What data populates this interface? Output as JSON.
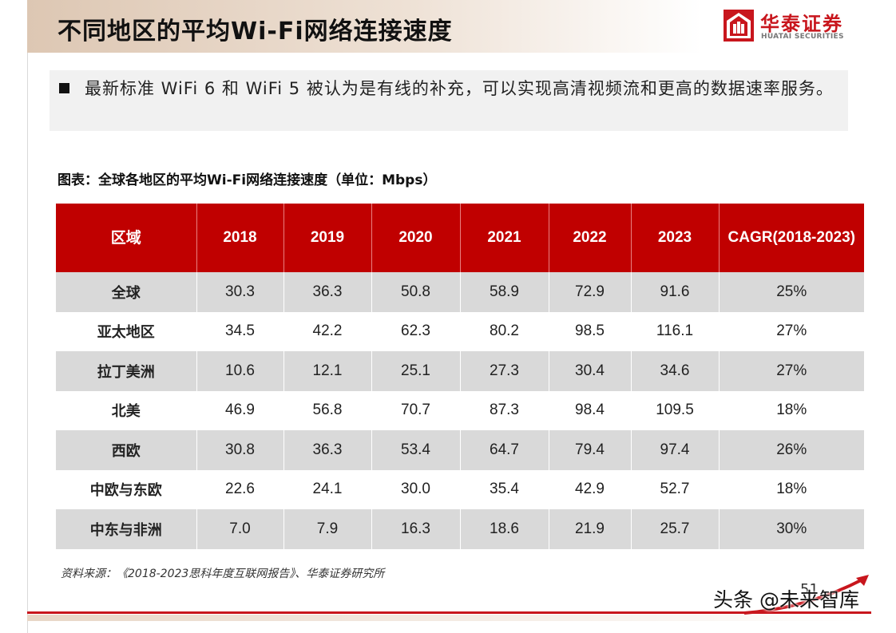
{
  "header": {
    "title": "不同地区的平均Wi-Fi网络连接速度",
    "logo_cn": "华泰证券",
    "logo_en": "HUATAI SECURITIES",
    "brand_color": "#c8161d"
  },
  "bullet": {
    "text": "最新标准 WiFi 6 和 WiFi 5 被认为是有线的补充，可以实现高清视频流和更高的数据速率服务。"
  },
  "table": {
    "caption": "图表：全球各地区的平均Wi-Fi网络连接速度（单位：Mbps）",
    "header_color": "#c00000",
    "columns": [
      "区域",
      "2018",
      "2019",
      "2020",
      "2021",
      "2022",
      "2023",
      "CAGR(2018-2023)"
    ],
    "rows": [
      [
        "全球",
        "30.3",
        "36.3",
        "50.8",
        "58.9",
        "72.9",
        "91.6",
        "25%"
      ],
      [
        "亚太地区",
        "34.5",
        "42.2",
        "62.3",
        "80.2",
        "98.5",
        "116.1",
        "27%"
      ],
      [
        "拉丁美洲",
        "10.6",
        "12.1",
        "25.1",
        "27.3",
        "30.4",
        "34.6",
        "27%"
      ],
      [
        "北美",
        "46.9",
        "56.8",
        "70.7",
        "87.3",
        "98.4",
        "109.5",
        "18%"
      ],
      [
        "西欧",
        "30.8",
        "36.3",
        "53.4",
        "64.7",
        "79.4",
        "97.4",
        "26%"
      ],
      [
        "中欧与东欧",
        "22.6",
        "24.1",
        "30.0",
        "35.4",
        "42.9",
        "52.7",
        "18%"
      ],
      [
        "中东与非洲",
        "7.0",
        "7.9",
        "16.3",
        "18.6",
        "21.9",
        "25.7",
        "30%"
      ]
    ]
  },
  "footer": {
    "source": "资料来源：《2018-2023思科年度互联网报告》、华泰证券研究所",
    "page_number": "51",
    "watermark": "头条 @未来智库"
  }
}
